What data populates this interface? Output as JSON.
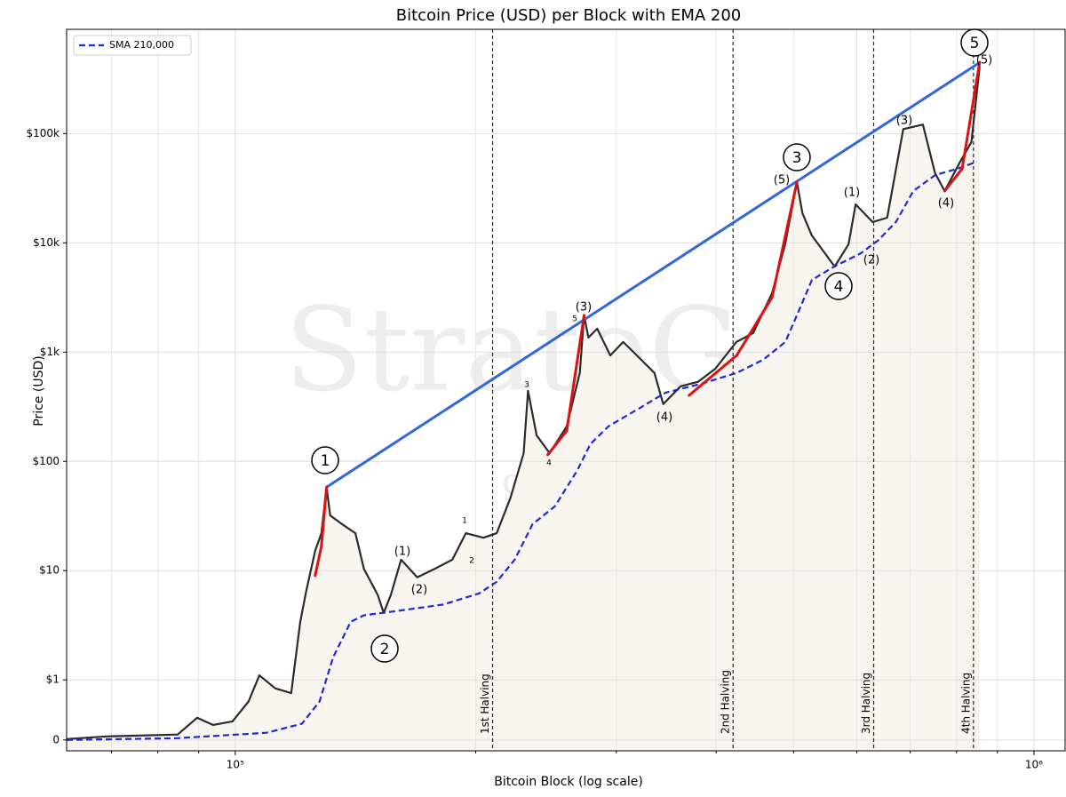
{
  "chart_data": {
    "type": "line",
    "title": "Bitcoin Price (USD) per Block with EMA 200",
    "xlabel": "Bitcoin Block (log scale)",
    "ylabel": "Price (USD)",
    "xscale": "log",
    "yscale": "symlog",
    "xlim": [
      61500,
      1094000
    ],
    "ylim": [
      -0.18,
      900000
    ],
    "xticks": [
      {
        "value": 100000,
        "label": "10⁵"
      },
      {
        "value": 1000000,
        "label": "10⁶"
      }
    ],
    "xminorticks": [
      70000,
      80000,
      90000,
      200000,
      300000,
      400000,
      500000,
      600000,
      700000,
      800000,
      900000
    ],
    "yticks": [
      0,
      {
        "value": 1,
        "label": "$1"
      },
      {
        "value": 10,
        "label": "$10"
      },
      {
        "value": 100,
        "label": "$100"
      },
      {
        "value": 1000,
        "label": "$1k"
      },
      {
        "value": 10000,
        "label": "$10k"
      },
      {
        "value": 100000,
        "label": "$100k"
      }
    ],
    "grid": true,
    "legend": "upper left",
    "series": [
      {
        "color": "#2b2b2b",
        "fill": "#f8f4ef",
        "x": [
          61500,
          69000,
          84700,
          89600,
          93800,
          99200,
          103900,
          107200,
          112200,
          117500,
          120600,
          122700,
          125900,
          128200,
          130100,
          131500,
          136000,
          141400,
          144900,
          150800,
          153400,
          156600,
          161300,
          169000,
          177800,
          187000,
          194400,
          204500,
          212500,
          221000,
          229700,
          232600,
          238400,
          247500,
          260000,
          270000,
          273400,
          276800,
          283900,
          294800,
          306000,
          318300,
          334800,
          343400,
          361000,
          379600,
          399000,
          424000,
          445000,
          470000,
          488000,
          505000,
          513000,
          527000,
          563000,
          586000,
          598000,
          628000,
          655000,
          686000,
          726000,
          752000,
          773000,
          805000,
          835000,
          855000
        ],
        "values": [
          0.015,
          0.06,
          0.09,
          0.37,
          0.25,
          0.31,
          0.64,
          1.1,
          0.86,
          0.78,
          3.4,
          6.5,
          15.2,
          22,
          58,
          32,
          26.7,
          22,
          10.4,
          6.0,
          4.1,
          6.0,
          12.6,
          8.7,
          10.4,
          12.6,
          22,
          20,
          22,
          46,
          119,
          442,
          173,
          119,
          209,
          645,
          2170,
          1360,
          1640,
          933,
          1237,
          933,
          645,
          334,
          486,
          535,
          705,
          1237,
          1493,
          3460,
          9700,
          35900,
          18700,
          11700,
          6070,
          9700,
          22500,
          15500,
          17000,
          110000,
          121000,
          43400,
          29800,
          52200,
          83600,
          410000
        ]
      },
      {
        "name": "SMA 210,000",
        "color": "#1a2bd4",
        "dashed": true,
        "x": [
          61500,
          84700,
          109400,
          121200,
          127500,
          132600,
          139500,
          144900,
          160400,
          182300,
          202100,
          212500,
          223800,
          235700,
          251200,
          267900,
          278400,
          293200,
          320000,
          345800,
          383400,
          424400,
          458100,
          488300,
          507700,
          527300,
          562300,
          607300,
          638700,
          671700,
          706300,
          752500,
          802600,
          847600
        ],
        "values": [
          0,
          0.03,
          0.12,
          0.27,
          0.64,
          1.61,
          3.4,
          3.9,
          4.3,
          4.9,
          6.2,
          7.9,
          12.6,
          26.7,
          38.7,
          82,
          144,
          209,
          304,
          426,
          513,
          645,
          851,
          1237,
          2380,
          4580,
          6070,
          8040,
          10600,
          15500,
          29800,
          41800,
          47700,
          55300
        ]
      }
    ],
    "highlights": {
      "color": "#dd1111",
      "segments": [
        {
          "x": [
            125900,
            128200,
            130100
          ],
          "values": [
            9.0,
            16.7,
            58
          ]
        },
        {
          "x": [
            246200,
            260000,
            273400
          ],
          "values": [
            115,
            190,
            2170
          ]
        },
        {
          "x": [
            370000,
            424400,
            470000,
            505000
          ],
          "values": [
            402,
            933,
            3160,
            35900
          ]
        },
        {
          "x": [
            773000,
            813000,
            855000
          ],
          "values": [
            29800,
            47700,
            450000
          ]
        }
      ]
    },
    "trendline": {
      "color": "#3366dd",
      "x": [
        130100,
        855000
      ],
      "values": [
        58,
        447000
      ]
    },
    "halvings": [
      {
        "x": 210000,
        "label": "1st Halving"
      },
      {
        "x": 420000,
        "label": "2nd Halving"
      },
      {
        "x": 630000,
        "label": "3rd Halving"
      },
      {
        "x": 840000,
        "label": "4th Halving"
      }
    ],
    "annotations": [
      {
        "text": "1",
        "style": "circle"
      },
      {
        "text": "2",
        "style": "circle"
      },
      {
        "text": "3",
        "style": "circle"
      },
      {
        "text": "4",
        "style": "circle"
      },
      {
        "text": "5",
        "style": "circle"
      },
      {
        "text": "(1)"
      },
      {
        "text": "(2)"
      },
      {
        "text": "(3)"
      },
      {
        "text": "(4)"
      },
      {
        "text": "(5)"
      },
      {
        "text": "(1)"
      },
      {
        "text": "(2)"
      },
      {
        "text": "(3)"
      },
      {
        "text": "(4)"
      },
      {
        "text": "(5)"
      },
      {
        "text": "1",
        "style": "small"
      },
      {
        "text": "2",
        "style": "small"
      },
      {
        "text": "3",
        "style": "small"
      },
      {
        "text": "4",
        "style": "small"
      },
      {
        "text": "5",
        "style": "small"
      }
    ],
    "watermark": [
      "StrateG",
      "gertvanlagen.com"
    ]
  }
}
